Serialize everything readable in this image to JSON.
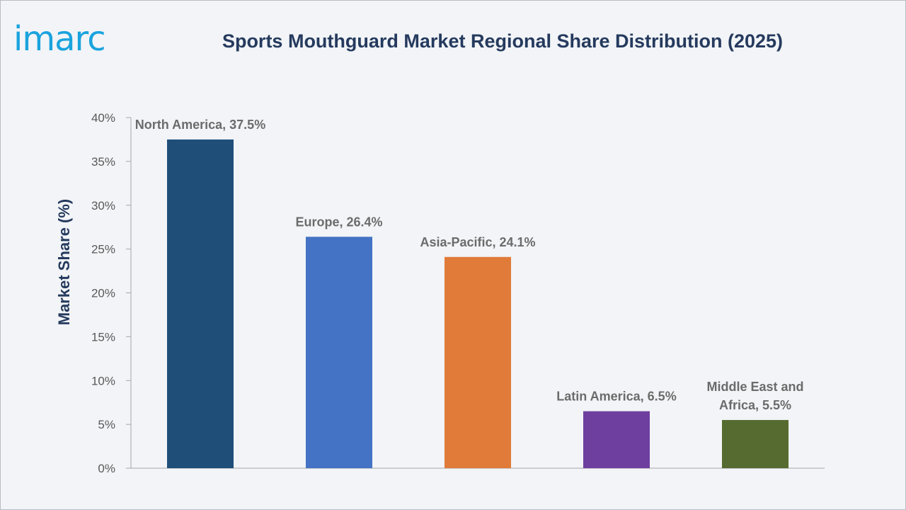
{
  "brand": {
    "logo_text": "imarc",
    "logo_color": "#1aa3dd"
  },
  "header": {
    "title": "Sports Mouthguard Market Regional Share Distribution (2025)",
    "title_color": "#253a5e"
  },
  "chart_data": {
    "type": "bar",
    "title": "Sports Mouthguard Market Regional Share Distribution (2025)",
    "xlabel": "",
    "ylabel": "Market Share (%)",
    "ylim": [
      0,
      40
    ],
    "yticks": [
      0,
      5,
      10,
      15,
      20,
      25,
      30,
      35,
      40
    ],
    "ytick_labels": [
      "0%",
      "5%",
      "10%",
      "15%",
      "20%",
      "25%",
      "30%",
      "35%",
      "40%"
    ],
    "grid": false,
    "legend": "none",
    "categories": [
      "North America",
      "Europe",
      "Asia-Pacific",
      "Latin America",
      "Middle East and Africa"
    ],
    "values": [
      37.5,
      26.4,
      24.1,
      6.5,
      5.5
    ],
    "data_labels": [
      [
        "North America, 37.5%"
      ],
      [
        "Europe, 26.4%"
      ],
      [
        "Asia-Pacific, 24.1%"
      ],
      [
        "Latin America, 6.5%"
      ],
      [
        "Middle East and",
        "Africa, 5.5%"
      ]
    ],
    "colors": [
      "#1f4e79",
      "#4472c4",
      "#e07b39",
      "#6f3fa0",
      "#556b2f"
    ]
  }
}
